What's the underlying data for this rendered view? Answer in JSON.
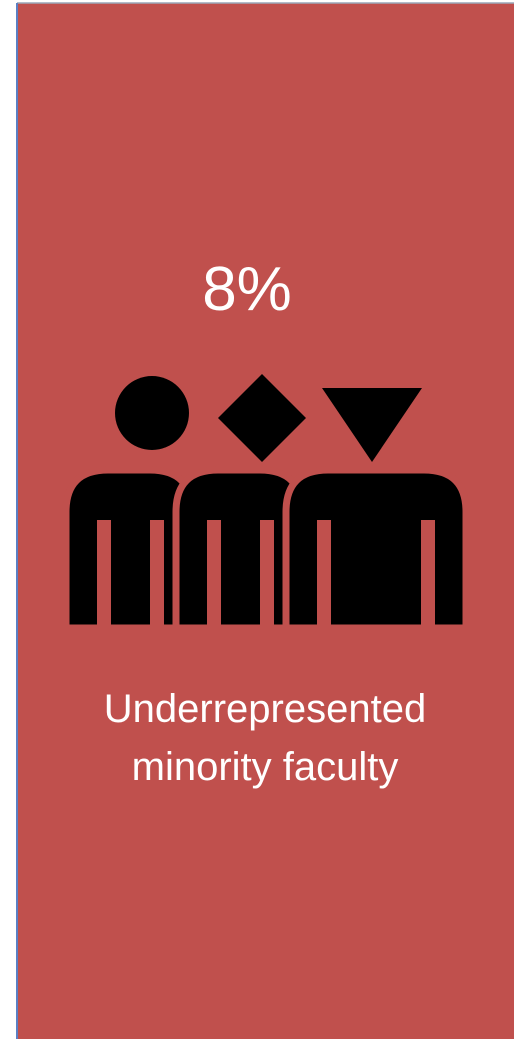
{
  "stat": "8%",
  "label": [
    "Underrepresented",
    "minority faculty"
  ]
}
